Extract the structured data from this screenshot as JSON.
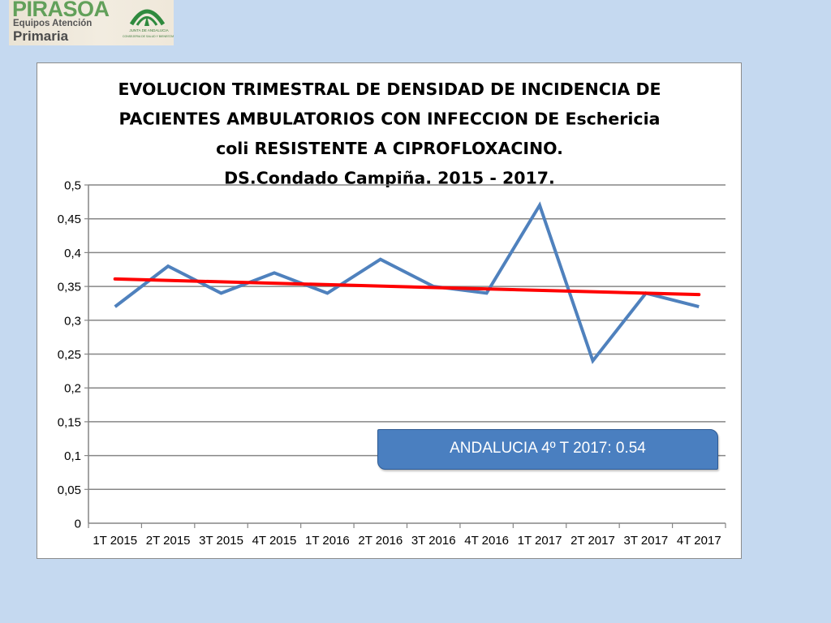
{
  "logo": {
    "brand": "PIRASOA",
    "line1": "Equipos Atención",
    "line2": "Primaria",
    "emblem_line1": "JUNTA DE ANDALUCIA",
    "emblem_line2": "CONSEJERIA DE SALUD Y BIENESTAR SOCIAL",
    "emblem_icon": "junta-de-andalucia-emblem-icon"
  },
  "chart_data": {
    "type": "line",
    "title_lines": [
      "EVOLUCION TRIMESTRAL DE DENSIDAD DE INCIDENCIA DE",
      "PACIENTES AMBULATORIOS CON INFECCION DE Eschericia",
      "coli RESISTENTE A CIPROFLOXACINO.",
      "DS.Condado Campiña. 2015 - 2017."
    ],
    "categories": [
      "1T 2015",
      "2T 2015",
      "3T 2015",
      "4T 2015",
      "1T 2016",
      "2T 2016",
      "3T 2016",
      "4T 2016",
      "1T 2017",
      "2T 2017",
      "3T 2017",
      "4T 2017"
    ],
    "series": [
      {
        "values": [
          0.32,
          0.38,
          0.34,
          0.37,
          0.34,
          0.39,
          0.35,
          0.34,
          0.47,
          0.24,
          0.34,
          0.32
        ],
        "color": "#4f81bd"
      }
    ],
    "trendline": {
      "start": 0.361,
      "end": 0.338,
      "color": "#ff0000"
    },
    "yticks": [
      "0",
      "0,05",
      "0,1",
      "0,15",
      "0,2",
      "0,25",
      "0,3",
      "0,35",
      "0,4",
      "0,45",
      "0,5"
    ],
    "ylim": [
      0,
      0.5
    ],
    "ystep": 0.05,
    "grid": true,
    "legend": "none",
    "annotation": "ANDALUCIA 4º T 2017: 0.54"
  }
}
